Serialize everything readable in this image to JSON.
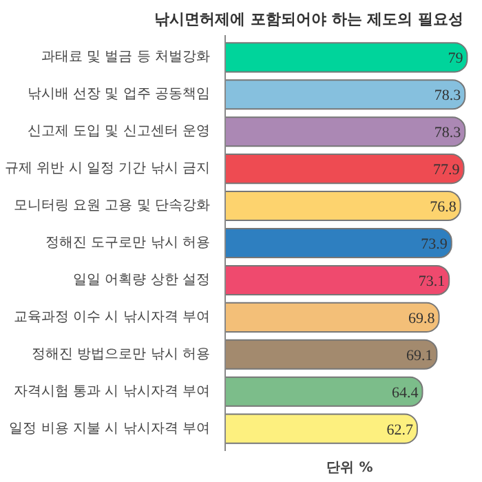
{
  "chart_data": {
    "type": "bar",
    "orientation": "horizontal",
    "title": "낚시면허제에 포함되어야 하는 제도의 필요성",
    "categories": [
      "과태료 및 벌금 등 처벌강화",
      "낚시배 선장 및 업주 공동책임",
      "신고제 도입 및 신고센터 운영",
      "규제 위반 시 일정 기간 낚시 금지",
      "모니터링 요원 고용 및 단속강화",
      "정해진 도구로만 낚시 허용",
      "일일 어획량 상한 설정",
      "교육과정 이수 시 낚시자격 부여",
      "정해진 방법으로만 낚시 허용",
      "자격시험 통과 시 낚시자격 부여",
      "일정 비용 지불 시 낚시자격 부여"
    ],
    "values": [
      79,
      78.3,
      78.3,
      77.9,
      76.8,
      73.9,
      73.1,
      69.8,
      69.1,
      64.4,
      62.7
    ],
    "colors": [
      "#00d49b",
      "#86c0de",
      "#ab88b4",
      "#ee4b52",
      "#fdd36e",
      "#2e7fc0",
      "#ef4a6e",
      "#f3bf78",
      "#a38a6e",
      "#7cbd8a",
      "#fdf07f"
    ],
    "data_labels": true,
    "annotations": [
      "단위 %"
    ]
  }
}
